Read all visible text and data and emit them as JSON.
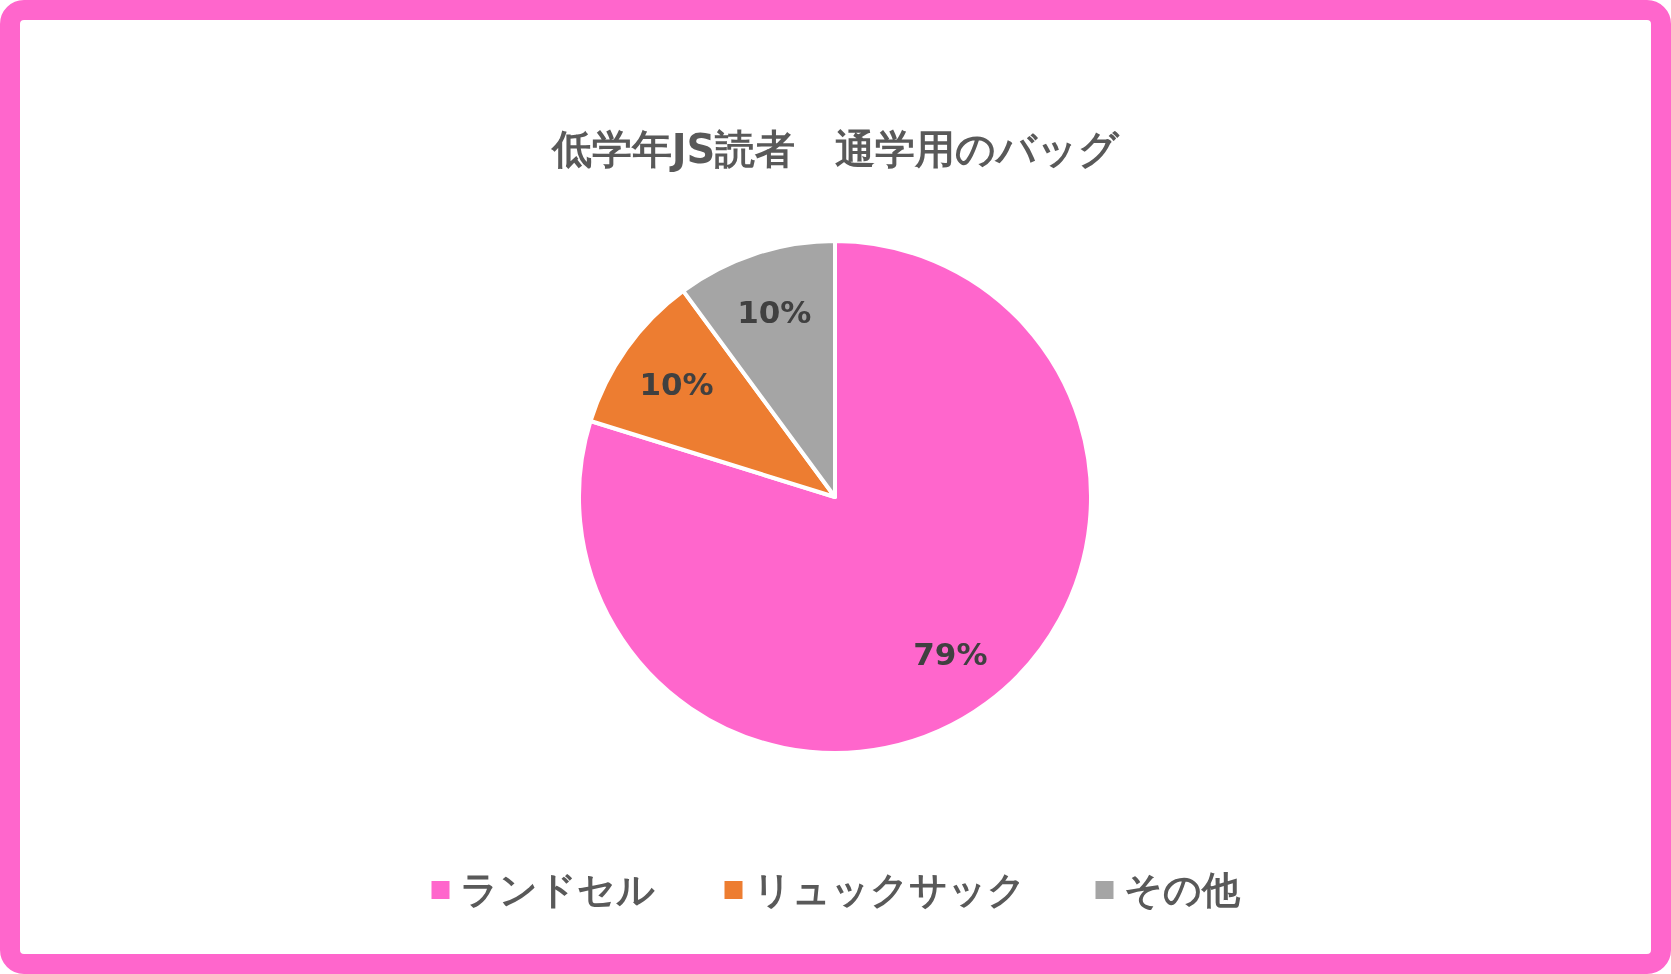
{
  "chart_data": {
    "type": "pie",
    "title": "低学年JS読者　通学用のバッグ",
    "categories": [
      "ランドセル",
      "リュックサック",
      "その他"
    ],
    "values": [
      79,
      10,
      10
    ],
    "colors": [
      "#ff66cc",
      "#ed7d31",
      "#a5a5a5"
    ],
    "value_labels": [
      "79%",
      "10%",
      "10%"
    ],
    "legend": "bottom"
  }
}
